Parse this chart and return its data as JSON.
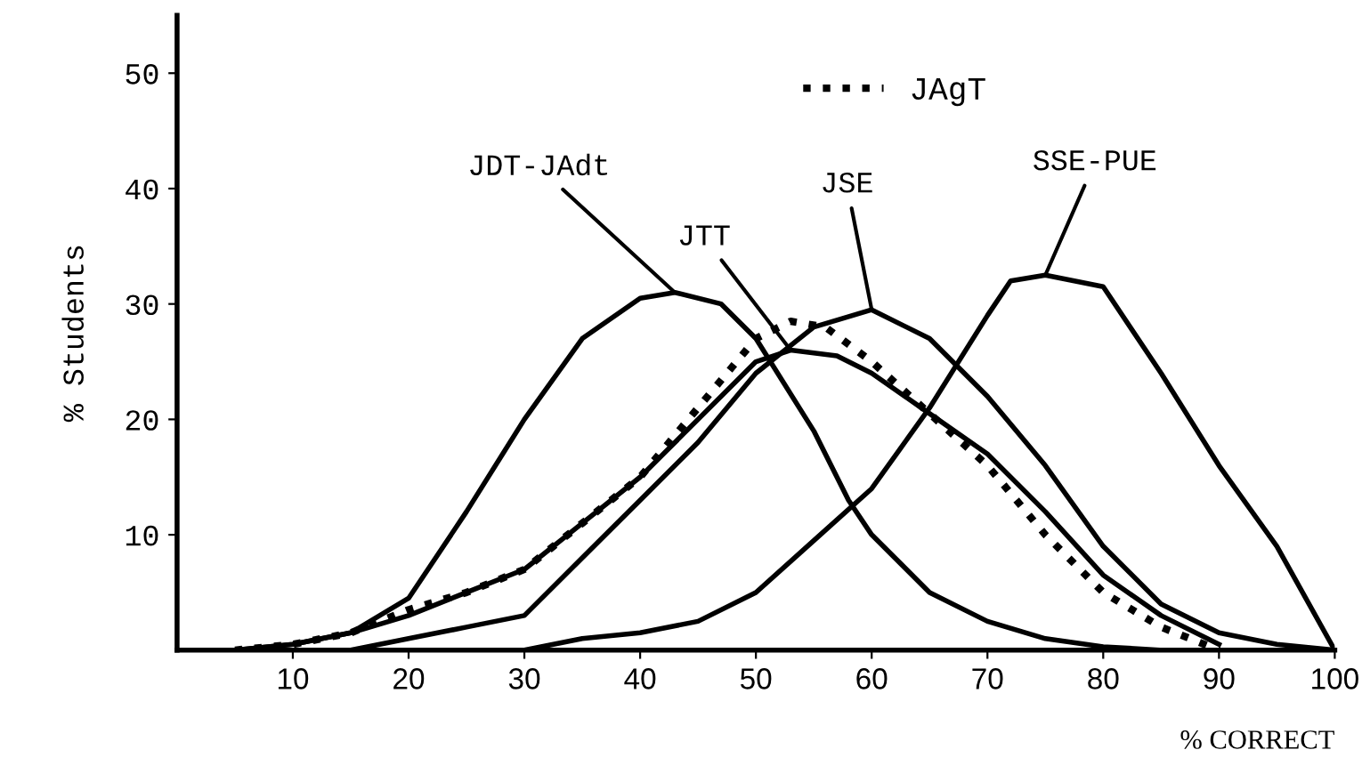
{
  "chart_data": {
    "type": "line",
    "xlabel": "% CORRECT",
    "ylabel": "% Students",
    "xlim": [
      0,
      100
    ],
    "ylim": [
      0,
      55
    ],
    "xticks": [
      10,
      20,
      30,
      40,
      50,
      60,
      70,
      80,
      90,
      100
    ],
    "yticks": [
      10,
      20,
      30,
      40,
      50
    ],
    "grid": false,
    "legend": "top",
    "marker": "none",
    "series": [
      {
        "name": "JDT-JAdt",
        "color": "#000000",
        "line_style": "solid",
        "x": [
          5,
          10,
          15,
          20,
          25,
          30,
          35,
          40,
          43,
          47,
          50,
          55,
          58,
          60,
          65,
          70,
          75,
          80,
          85
        ],
        "values": [
          0,
          0.5,
          1.5,
          4.5,
          12,
          20,
          27,
          30.5,
          31,
          30,
          27,
          19,
          13,
          10,
          5,
          2.5,
          1,
          0.3,
          0
        ]
      },
      {
        "name": "JTT",
        "color": "#000000",
        "line_style": "solid",
        "x": [
          5,
          10,
          15,
          20,
          25,
          30,
          35,
          40,
          45,
          50,
          53,
          57,
          60,
          65,
          70,
          75,
          80,
          85,
          90
        ],
        "values": [
          0,
          0.5,
          1.5,
          3,
          5,
          7,
          11,
          15,
          20,
          25,
          26,
          25.5,
          24,
          20.5,
          17,
          12,
          6.5,
          3,
          0.5
        ]
      },
      {
        "name": "JAgT",
        "color": "#000000",
        "line_style": "dotted",
        "x": [
          5,
          10,
          15,
          20,
          25,
          30,
          35,
          40,
          45,
          50,
          53,
          56,
          60,
          65,
          70,
          75,
          80,
          85,
          90
        ],
        "values": [
          0,
          0.5,
          1.5,
          3.5,
          5,
          7,
          11,
          15,
          21,
          27,
          28.5,
          28,
          25,
          20.5,
          16,
          10,
          5,
          2,
          0
        ]
      },
      {
        "name": "JSE",
        "color": "#000000",
        "line_style": "solid",
        "x": [
          15,
          20,
          25,
          30,
          35,
          40,
          45,
          50,
          55,
          60,
          65,
          70,
          75,
          80,
          85,
          90,
          95,
          100
        ],
        "values": [
          0,
          1,
          2,
          3,
          8,
          13,
          18,
          24,
          28,
          29.5,
          27,
          22,
          16,
          9,
          4,
          1.5,
          0.5,
          0
        ]
      },
      {
        "name": "SSE-PUE",
        "color": "#000000",
        "line_style": "solid",
        "x": [
          30,
          35,
          40,
          45,
          50,
          55,
          60,
          65,
          70,
          72,
          75,
          80,
          85,
          90,
          95,
          100
        ],
        "values": [
          0,
          1,
          1.5,
          2.5,
          5,
          9.5,
          14,
          21,
          29,
          32,
          32.5,
          31.5,
          24,
          16,
          9,
          0
        ]
      }
    ]
  }
}
